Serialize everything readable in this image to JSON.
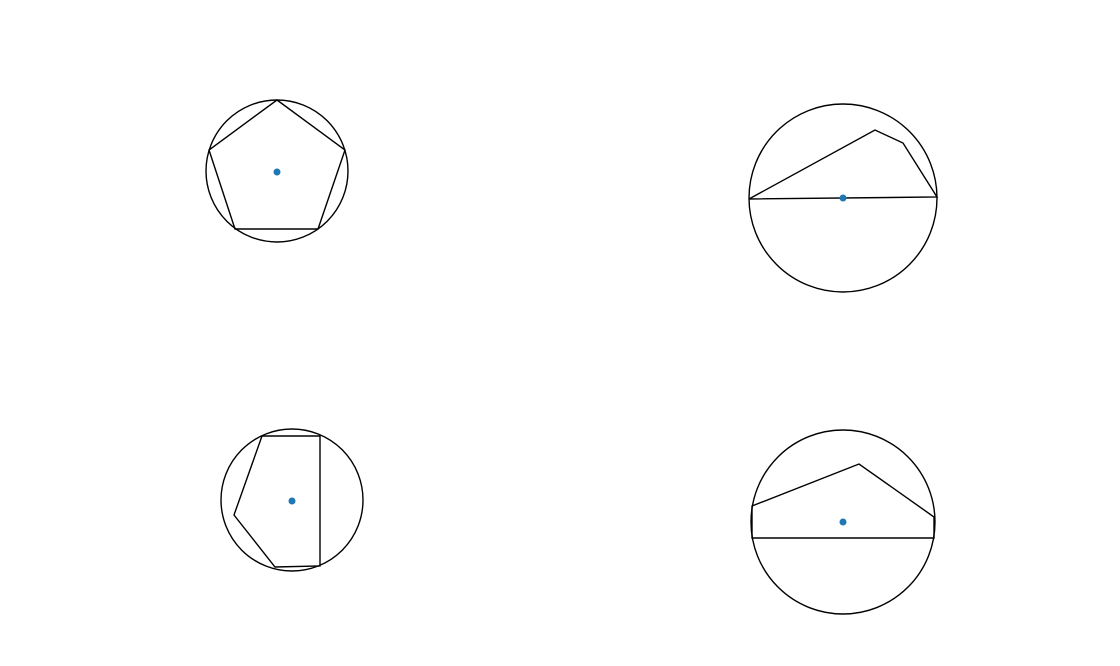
{
  "figure": {
    "background": "#ffffff",
    "stroke_color": "#000000",
    "center_color": "#1f77b4",
    "panels": [
      {
        "id": "panel-top-left",
        "shape": "pentagon",
        "inscribed": true
      },
      {
        "id": "panel-top-right",
        "shape": "pentagon",
        "inscribed": true
      },
      {
        "id": "panel-bottom-left",
        "shape": "pentagon",
        "inscribed": true
      },
      {
        "id": "panel-bottom-right",
        "shape": "pentagon",
        "inscribed": true
      }
    ]
  }
}
